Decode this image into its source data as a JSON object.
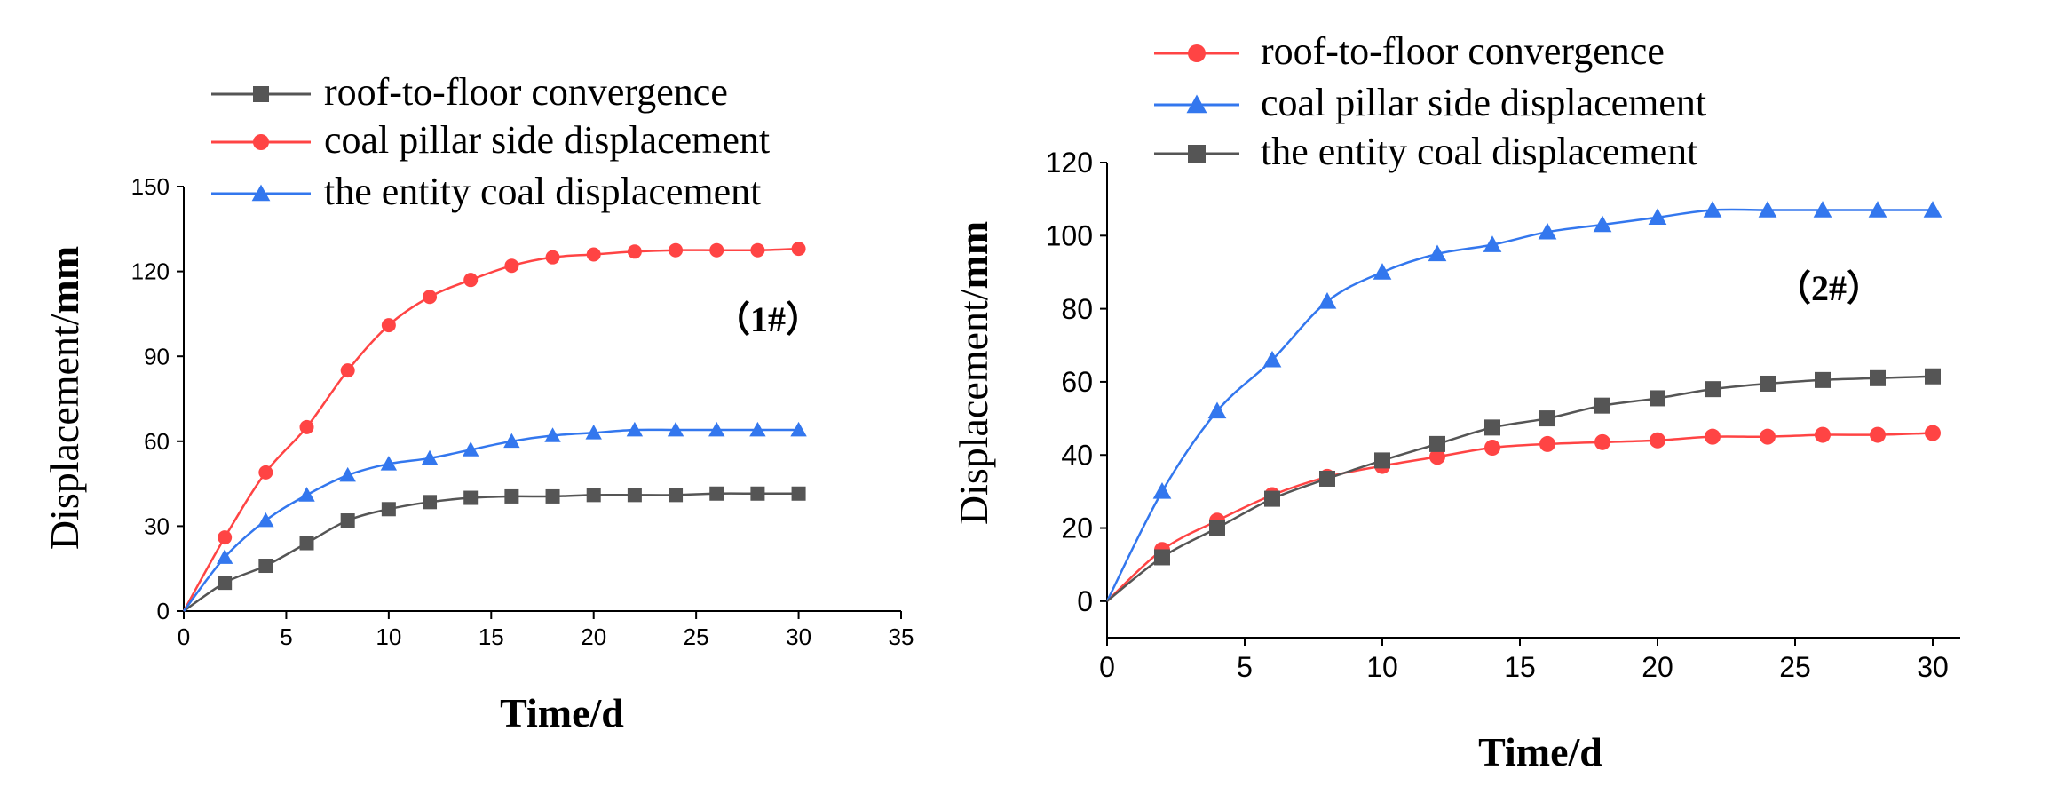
{
  "chart_data": [
    {
      "type": "line",
      "panel_label": "（1#）",
      "xlabel": "Time/d",
      "ylabel_prefix": "Displacement/",
      "ylabel_unit": "mm",
      "xlim": [
        0,
        35
      ],
      "ylim": [
        0,
        150
      ],
      "xticks": [
        0,
        5,
        10,
        15,
        20,
        25,
        30,
        35
      ],
      "yticks": [
        0,
        30,
        60,
        90,
        120,
        150
      ],
      "legend_position": "top",
      "series": [
        {
          "name": "roof-to-floor convergence",
          "color": "#555555",
          "marker": "square",
          "x": [
            0,
            2,
            4,
            6,
            8,
            10,
            12,
            14,
            16,
            18,
            20,
            22,
            24,
            26,
            28,
            30
          ],
          "y": [
            0,
            10,
            16,
            24,
            32,
            36,
            38.5,
            40,
            40.5,
            40.5,
            41,
            41,
            41,
            41.5,
            41.5,
            41.5
          ]
        },
        {
          "name": "coal pillar side  displacement",
          "color": "#ff4444",
          "marker": "circle",
          "x": [
            0,
            2,
            4,
            6,
            8,
            10,
            12,
            14,
            16,
            18,
            20,
            22,
            24,
            26,
            28,
            30
          ],
          "y": [
            0,
            26,
            49,
            65,
            85,
            101,
            111,
            117,
            122,
            125,
            126,
            127,
            127.5,
            127.5,
            127.5,
            128
          ]
        },
        {
          "name": "the entity coal displacement",
          "color": "#3377ee",
          "marker": "triangle",
          "x": [
            0,
            2,
            4,
            6,
            8,
            10,
            12,
            14,
            16,
            18,
            20,
            22,
            24,
            26,
            28,
            30
          ],
          "y": [
            0,
            19,
            32,
            41,
            48,
            52,
            54,
            57,
            60,
            62,
            63,
            64,
            64,
            64,
            64,
            64
          ]
        }
      ]
    },
    {
      "type": "line",
      "panel_label": "（2#）",
      "xlabel": "Time/d",
      "ylabel_prefix": "Displacement/",
      "ylabel_unit": "mm",
      "xlim": [
        0,
        31
      ],
      "ylim": [
        -10,
        120
      ],
      "xticks": [
        0,
        5,
        10,
        15,
        20,
        25,
        30
      ],
      "yticks": [
        0,
        20,
        40,
        60,
        80,
        100,
        120
      ],
      "legend_position": "top",
      "series": [
        {
          "name": "roof-to-floor convergence",
          "color": "#ff4444",
          "marker": "circle",
          "x": [
            0,
            2,
            4,
            6,
            8,
            10,
            12,
            14,
            16,
            18,
            20,
            22,
            24,
            26,
            28,
            30
          ],
          "y": [
            0,
            14,
            22,
            29,
            34,
            37,
            39.5,
            42,
            43,
            43.5,
            44,
            45,
            45,
            45.5,
            45.5,
            46
          ]
        },
        {
          "name": "coal pillar side  displacement",
          "color": "#3377ee",
          "marker": "triangle",
          "x": [
            0,
            2,
            4,
            6,
            8,
            10,
            12,
            14,
            16,
            18,
            20,
            22,
            24,
            26,
            28,
            30
          ],
          "y": [
            0,
            30,
            52,
            66,
            82,
            90,
            95,
            97.5,
            101,
            103,
            105,
            107,
            107,
            107,
            107,
            107
          ]
        },
        {
          "name": " the entity coal displacement",
          "color": "#555555",
          "marker": "square",
          "x": [
            0,
            2,
            4,
            6,
            8,
            10,
            12,
            14,
            16,
            18,
            20,
            22,
            24,
            26,
            28,
            30
          ],
          "y": [
            0,
            12,
            20,
            28,
            33.5,
            38.5,
            43,
            47.5,
            50,
            53.5,
            55.5,
            58,
            59.5,
            60.5,
            61,
            61.5
          ]
        }
      ]
    }
  ]
}
